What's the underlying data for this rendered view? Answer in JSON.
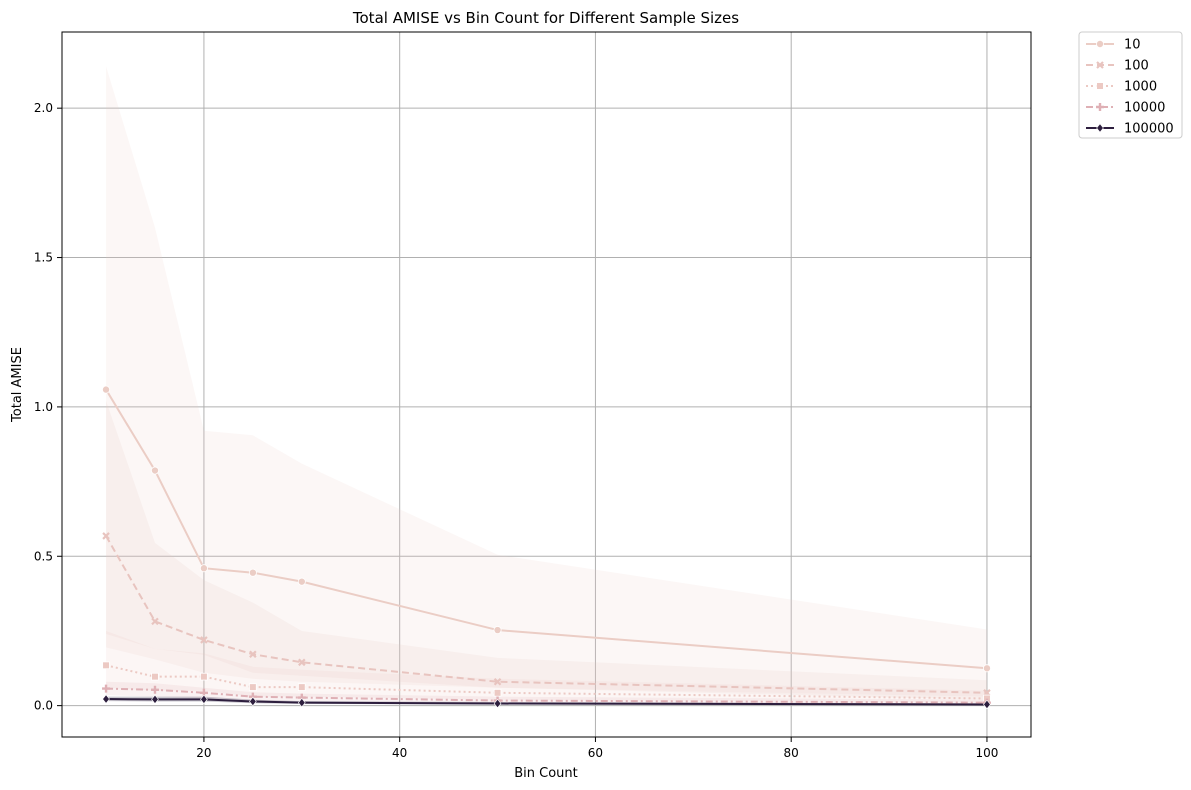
{
  "chart_data": {
    "type": "line",
    "title": "Total AMISE vs Bin Count for Different Sample Sizes",
    "xlabel": "Bin Count",
    "ylabel": "Total AMISE",
    "xlim": [
      5.5,
      104.5
    ],
    "ylim": [
      -0.105,
      2.255
    ],
    "xticks": [
      20,
      40,
      60,
      80,
      100
    ],
    "xtick_labels": [
      "20",
      "40",
      "60",
      "80",
      "100"
    ],
    "yticks": [
      0.0,
      0.5,
      1.0,
      1.5,
      2.0
    ],
    "ytick_labels": [
      "0.0",
      "0.5",
      "1.0",
      "1.5",
      "2.0"
    ],
    "grid": true,
    "legend_position": "outside-top-right",
    "x": [
      10,
      15,
      20,
      25,
      30,
      50,
      100
    ],
    "series": [
      {
        "name": "10",
        "values": [
          1.058,
          0.787,
          0.46,
          0.445,
          0.415,
          0.253,
          0.125
        ],
        "ci_upper": [
          2.14,
          1.6,
          0.92,
          0.905,
          0.81,
          0.505,
          0.255
        ],
        "ci_lower": [
          0.195,
          0.155,
          0.11,
          0.09,
          0.08,
          0.06,
          0.03
        ],
        "color": "#ebcdc5",
        "dash": "",
        "marker": "circle"
      },
      {
        "name": "100",
        "values": [
          0.568,
          0.282,
          0.22,
          0.172,
          0.145,
          0.08,
          0.043
        ],
        "ci_upper": [
          1.02,
          0.545,
          0.42,
          0.345,
          0.25,
          0.16,
          0.085
        ],
        "ci_lower": [
          0.24,
          0.19,
          0.17,
          0.11,
          0.1,
          0.06,
          0.02
        ],
        "color": "#e8c4bf",
        "dash": "7,4",
        "marker": "x"
      },
      {
        "name": "1000",
        "values": [
          0.135,
          0.097,
          0.097,
          0.062,
          0.062,
          0.043,
          0.024
        ],
        "ci_upper": [
          0.25,
          0.19,
          0.175,
          0.13,
          0.12,
          0.09,
          0.05
        ],
        "ci_lower": [
          0.06,
          0.05,
          0.05,
          0.03,
          0.03,
          0.02,
          0.01
        ],
        "color": "#ecc9c3",
        "dash": "2,3",
        "marker": "square"
      },
      {
        "name": "10000",
        "values": [
          0.057,
          0.053,
          0.043,
          0.03,
          0.027,
          0.017,
          0.01
        ],
        "ci_upper": [
          0.08,
          0.075,
          0.06,
          0.045,
          0.04,
          0.03,
          0.02
        ],
        "ci_lower": [
          0.035,
          0.03,
          0.025,
          0.015,
          0.015,
          0.008,
          0.004
        ],
        "color": "#dfb0b5",
        "dash": "7,3,2,3",
        "marker": "plus"
      },
      {
        "name": "100000",
        "values": [
          0.022,
          0.021,
          0.021,
          0.014,
          0.01,
          0.007,
          0.004
        ],
        "ci_upper": [
          0.03,
          0.03,
          0.03,
          0.02,
          0.015,
          0.012,
          0.008
        ],
        "ci_lower": [
          0.015,
          0.014,
          0.014,
          0.008,
          0.006,
          0.004,
          0.002
        ],
        "color": "#2d1e3e",
        "dash": "",
        "marker": "diamond"
      }
    ]
  }
}
